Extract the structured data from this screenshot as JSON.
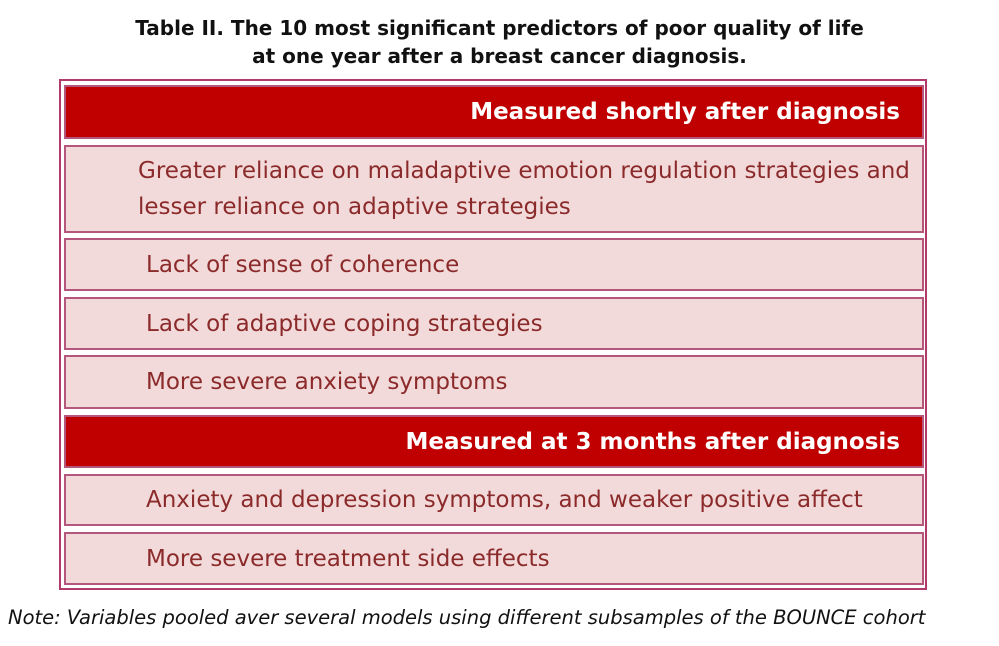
{
  "title": {
    "line1": "Table II. The 10 most significant predictors of poor quality of life",
    "line2": "at one year after a breast cancer diagnosis."
  },
  "sections": [
    {
      "header": "Measured shortly after diagnosis",
      "items": [
        "Greater reliance on maladaptive emotion regulation strategies and lesser reliance on adaptive strategies",
        "Lack of sense of coherence",
        "Lack of adaptive coping strategies",
        "More severe anxiety symptoms"
      ]
    },
    {
      "header": "Measured at 3 months after diagnosis",
      "items": [
        "Anxiety and depression symptoms, and weaker positive affect",
        "More severe treatment side effects"
      ]
    }
  ],
  "note": "Note: Variables pooled aver several models using different subsamples of the BOUNCE cohort",
  "colors": {
    "header_bg": "#c00000",
    "row_bg": "#f3dada",
    "row_text": "#8b2a2a",
    "border": "#b03a6a"
  }
}
